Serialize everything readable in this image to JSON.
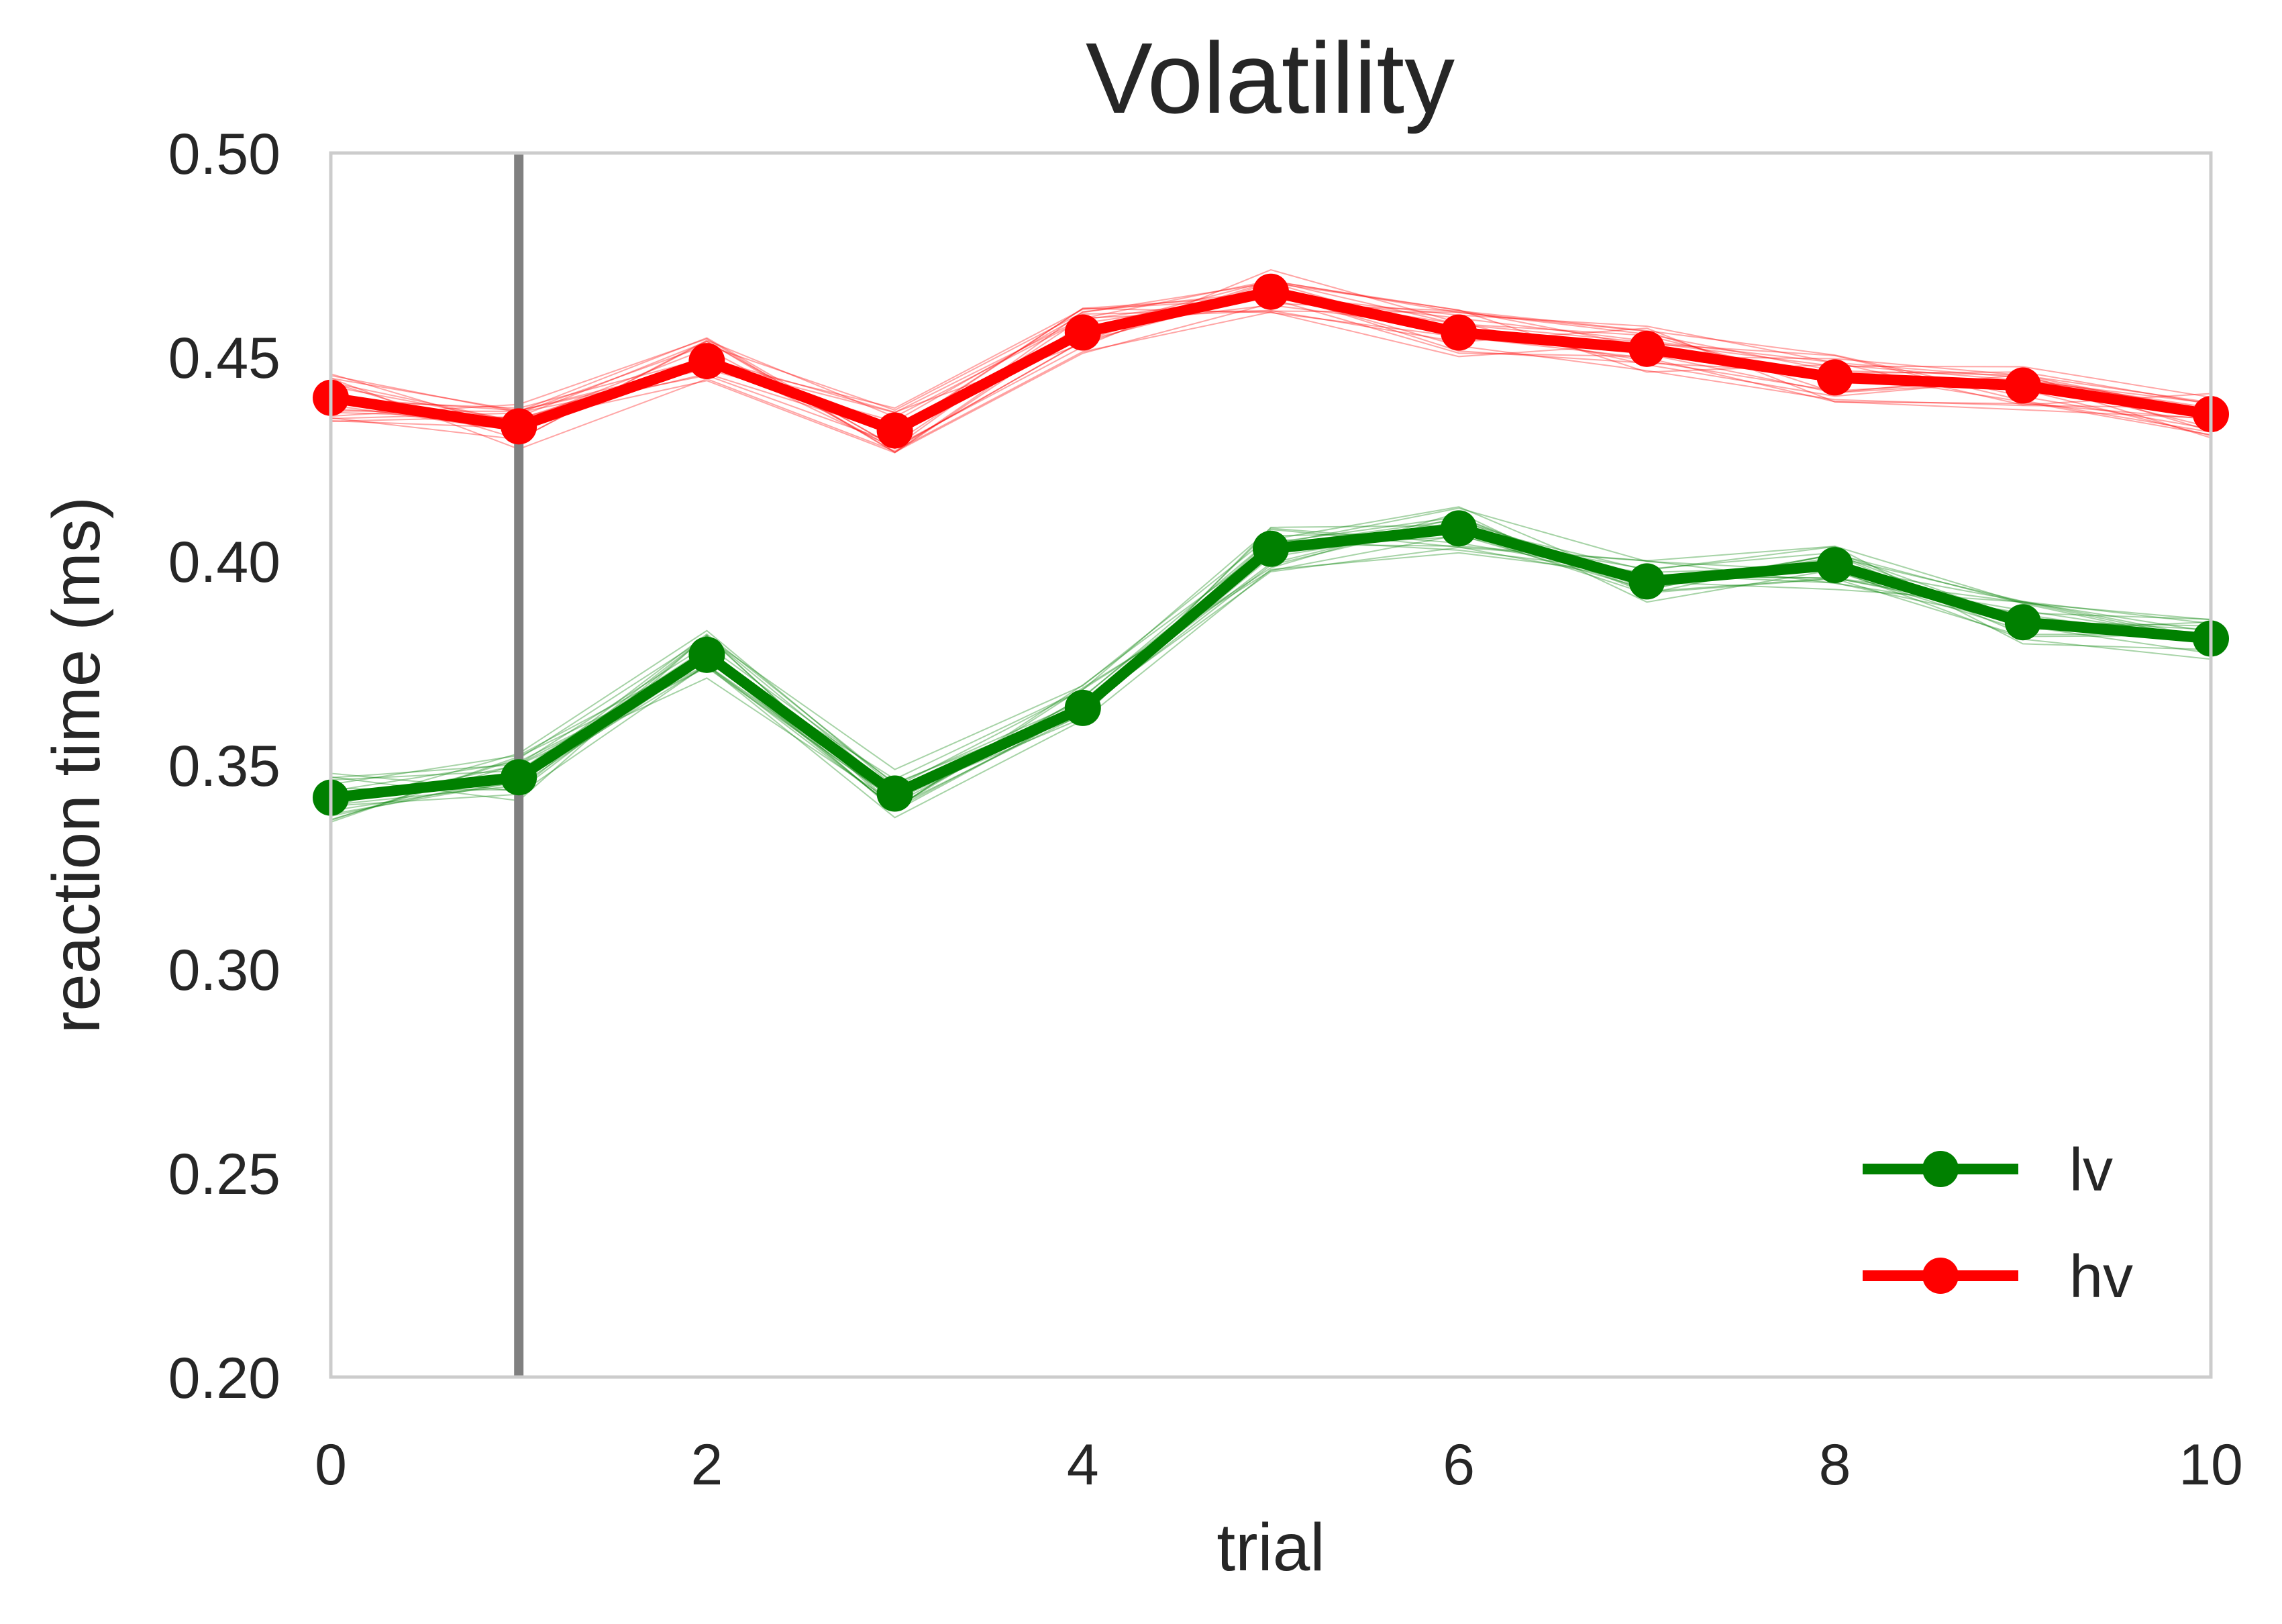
{
  "chart_data": {
    "type": "line",
    "title": "Volatility",
    "xlabel": "trial",
    "ylabel": "reaction time (ms)",
    "xlim": [
      0,
      10
    ],
    "ylim": [
      0.2,
      0.5
    ],
    "xticks": [
      0,
      2,
      4,
      6,
      8,
      10
    ],
    "xtick_labels": [
      "0",
      "2",
      "4",
      "6",
      "8",
      "10"
    ],
    "yticks": [
      0.2,
      0.25,
      0.3,
      0.35,
      0.4,
      0.45,
      0.5
    ],
    "ytick_labels": [
      "0.20",
      "0.25",
      "0.30",
      "0.35",
      "0.40",
      "0.45",
      "0.50"
    ],
    "grid": false,
    "legend_position": "lower-right",
    "vertical_line": {
      "x": 1,
      "color": "#808080"
    },
    "x": [
      0,
      1,
      2,
      3,
      4,
      5,
      6,
      7,
      8,
      9,
      10
    ],
    "series": [
      {
        "name": "lv",
        "color": "#008000",
        "values": [
          0.342,
          0.347,
          0.377,
          0.343,
          0.364,
          0.403,
          0.408,
          0.395,
          0.399,
          0.385,
          0.381
        ]
      },
      {
        "name": "hv",
        "color": "#ff0000",
        "values": [
          0.44,
          0.433,
          0.449,
          0.432,
          0.456,
          0.466,
          0.456,
          0.452,
          0.445,
          0.443,
          0.436
        ]
      }
    ]
  }
}
